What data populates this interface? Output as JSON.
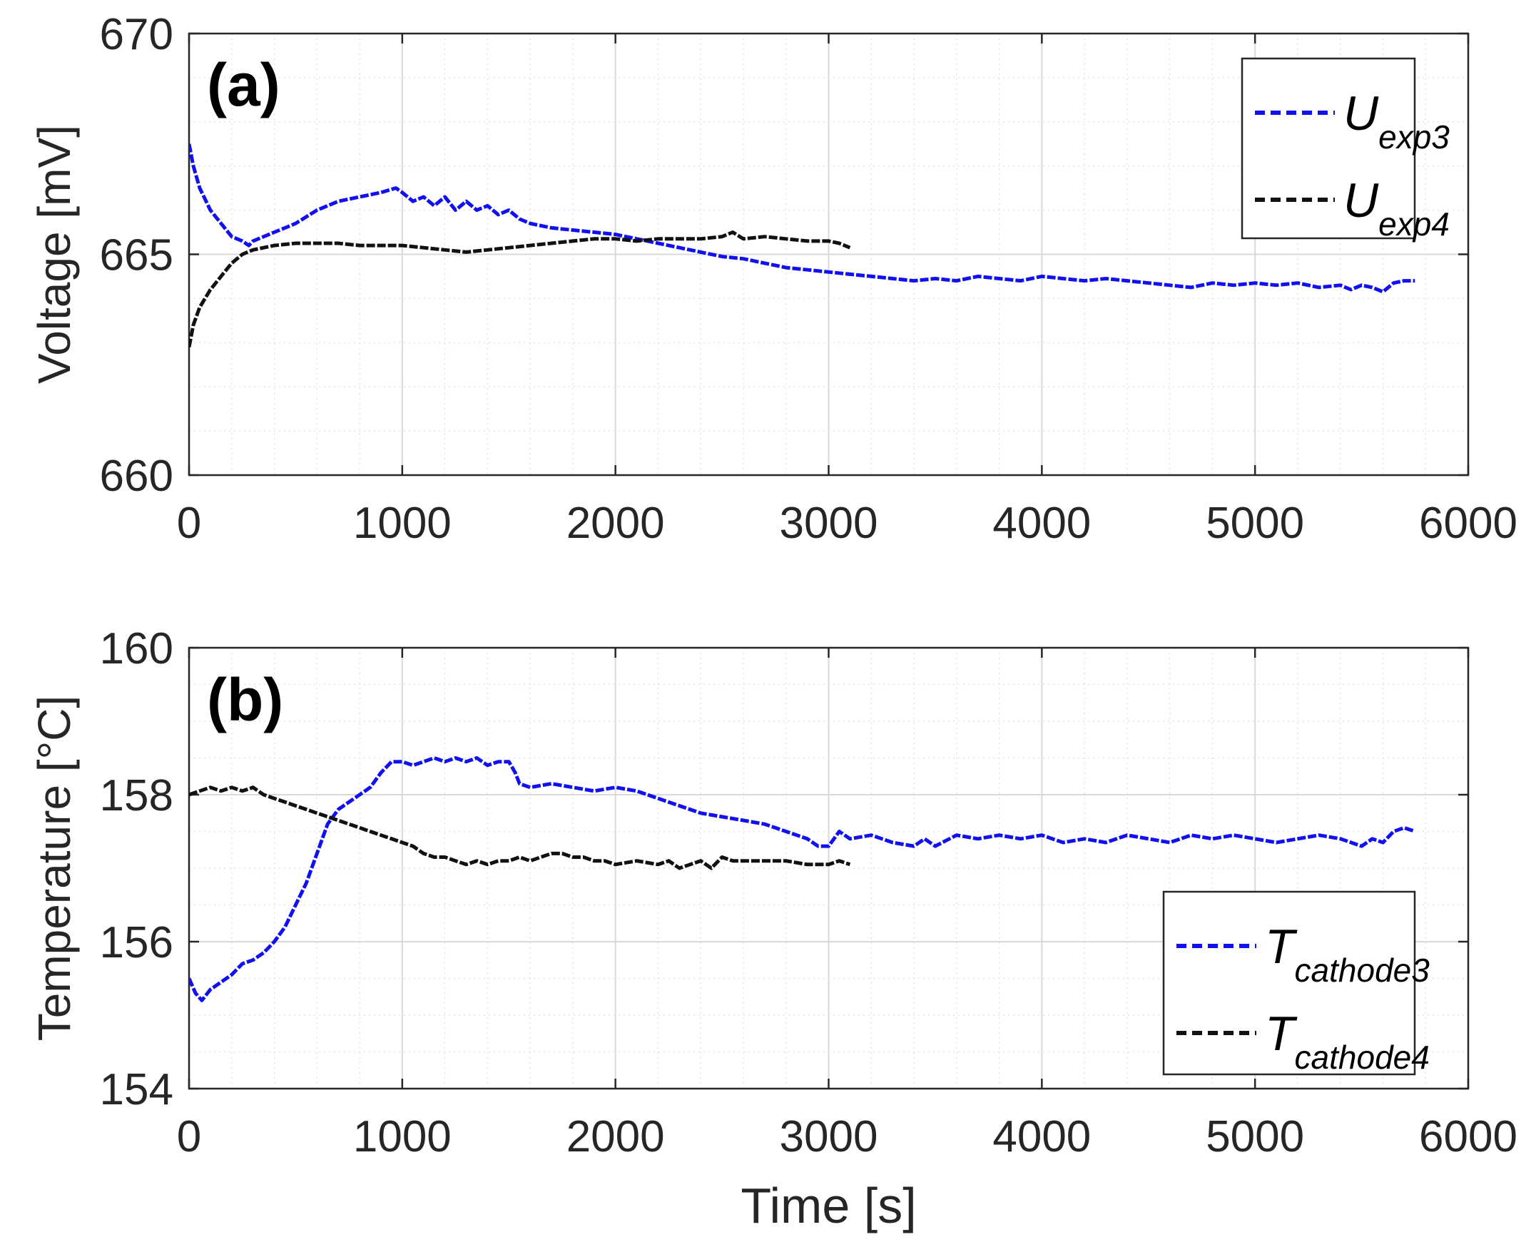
{
  "chart_data": [
    {
      "panel_label": "(a)",
      "type": "line",
      "xlim": [
        0,
        6000
      ],
      "ylim": [
        660,
        670
      ],
      "ylabel": "Voltage [mV]",
      "xlabel": "",
      "x_ticks": [
        "0",
        "1000",
        "2000",
        "3000",
        "4000",
        "5000",
        "6000"
      ],
      "y_ticks": [
        "660",
        "665",
        "670"
      ],
      "grid": "major and minor, dotted",
      "legend_position": "top-right",
      "series": [
        {
          "name_main": "U",
          "name_sub": "exp3",
          "color": "#1010f0",
          "style": "dashed",
          "x": [
            0,
            20,
            50,
            100,
            150,
            200,
            250,
            280,
            300,
            350,
            400,
            450,
            500,
            600,
            700,
            800,
            900,
            970,
            1000,
            1050,
            1100,
            1150,
            1200,
            1250,
            1300,
            1350,
            1400,
            1450,
            1500,
            1550,
            1600,
            1700,
            1800,
            1900,
            2000,
            2100,
            2200,
            2300,
            2400,
            2500,
            2600,
            2700,
            2800,
            2900,
            3000,
            3100,
            3200,
            3300,
            3400,
            3500,
            3600,
            3700,
            3800,
            3900,
            4000,
            4100,
            4200,
            4300,
            4400,
            4500,
            4600,
            4700,
            4800,
            4900,
            5000,
            5100,
            5200,
            5300,
            5400,
            5450,
            5500,
            5550,
            5600,
            5650,
            5700,
            5750
          ],
          "y": [
            667.5,
            667.0,
            666.5,
            666.0,
            665.7,
            665.4,
            665.3,
            665.2,
            665.3,
            665.4,
            665.5,
            665.6,
            665.7,
            666.0,
            666.2,
            666.3,
            666.4,
            666.5,
            666.4,
            666.2,
            666.3,
            666.1,
            666.3,
            666.0,
            666.2,
            666.0,
            666.1,
            665.9,
            666.0,
            665.8,
            665.7,
            665.6,
            665.55,
            665.5,
            665.45,
            665.35,
            665.25,
            665.15,
            665.05,
            664.95,
            664.9,
            664.8,
            664.7,
            664.65,
            664.6,
            664.55,
            664.5,
            664.45,
            664.4,
            664.45,
            664.4,
            664.5,
            664.45,
            664.4,
            664.5,
            664.45,
            664.4,
            664.45,
            664.4,
            664.35,
            664.3,
            664.25,
            664.35,
            664.3,
            664.35,
            664.3,
            664.35,
            664.25,
            664.3,
            664.2,
            664.3,
            664.25,
            664.15,
            664.35,
            664.4,
            664.4
          ]
        },
        {
          "name_main": "U",
          "name_sub": "exp4",
          "color": "#111111",
          "style": "dashed",
          "x": [
            0,
            20,
            50,
            100,
            150,
            200,
            250,
            300,
            350,
            400,
            500,
            600,
            700,
            800,
            900,
            1000,
            1100,
            1200,
            1300,
            1400,
            1500,
            1600,
            1700,
            1800,
            1900,
            2000,
            2100,
            2200,
            2300,
            2400,
            2500,
            2550,
            2600,
            2700,
            2800,
            2900,
            3000,
            3050,
            3100
          ],
          "y": [
            662.9,
            663.4,
            663.8,
            664.2,
            664.5,
            664.8,
            665.0,
            665.1,
            665.15,
            665.2,
            665.25,
            665.25,
            665.25,
            665.2,
            665.2,
            665.2,
            665.15,
            665.1,
            665.05,
            665.1,
            665.15,
            665.2,
            665.25,
            665.3,
            665.35,
            665.35,
            665.3,
            665.35,
            665.35,
            665.35,
            665.4,
            665.5,
            665.35,
            665.4,
            665.35,
            665.3,
            665.3,
            665.25,
            665.15
          ]
        }
      ]
    },
    {
      "panel_label": "(b)",
      "type": "line",
      "xlim": [
        0,
        6000
      ],
      "ylim": [
        154,
        160
      ],
      "ylabel": "Temperature [°C]",
      "xlabel": "Time [s]",
      "x_ticks": [
        "0",
        "1000",
        "2000",
        "3000",
        "4000",
        "5000",
        "6000"
      ],
      "y_ticks": [
        "154",
        "156",
        "158",
        "160"
      ],
      "grid": "major and minor, dotted",
      "legend_position": "bottom-right",
      "series": [
        {
          "name_main": "T",
          "name_sub": "cathode3",
          "color": "#1010f0",
          "style": "dashed",
          "x": [
            0,
            30,
            60,
            100,
            150,
            200,
            250,
            300,
            350,
            400,
            450,
            500,
            550,
            600,
            650,
            700,
            750,
            800,
            850,
            900,
            950,
            1000,
            1050,
            1100,
            1150,
            1200,
            1250,
            1300,
            1350,
            1400,
            1450,
            1500,
            1530,
            1550,
            1600,
            1700,
            1800,
            1900,
            2000,
            2100,
            2200,
            2300,
            2400,
            2500,
            2600,
            2700,
            2800,
            2900,
            2950,
            3000,
            3050,
            3100,
            3200,
            3300,
            3400,
            3450,
            3500,
            3600,
            3700,
            3800,
            3900,
            4000,
            4100,
            4200,
            4300,
            4400,
            4500,
            4600,
            4700,
            4800,
            4900,
            5000,
            5100,
            5200,
            5300,
            5400,
            5500,
            5550,
            5600,
            5650,
            5700,
            5750
          ],
          "y": [
            155.5,
            155.3,
            155.2,
            155.35,
            155.45,
            155.55,
            155.7,
            155.75,
            155.85,
            156.0,
            156.2,
            156.5,
            156.8,
            157.2,
            157.6,
            157.8,
            157.9,
            158.0,
            158.1,
            158.3,
            158.45,
            158.45,
            158.4,
            158.45,
            158.5,
            158.45,
            158.5,
            158.45,
            158.5,
            158.4,
            158.45,
            158.45,
            158.3,
            158.15,
            158.1,
            158.15,
            158.1,
            158.05,
            158.1,
            158.05,
            157.95,
            157.85,
            157.75,
            157.7,
            157.65,
            157.6,
            157.5,
            157.4,
            157.3,
            157.3,
            157.5,
            157.4,
            157.45,
            157.35,
            157.3,
            157.4,
            157.3,
            157.45,
            157.4,
            157.45,
            157.4,
            157.45,
            157.35,
            157.4,
            157.35,
            157.45,
            157.4,
            157.35,
            157.45,
            157.4,
            157.45,
            157.4,
            157.35,
            157.4,
            157.45,
            157.4,
            157.3,
            157.4,
            157.35,
            157.5,
            157.55,
            157.5
          ]
        },
        {
          "name_main": "T",
          "name_sub": "cathode4",
          "color": "#111111",
          "style": "dashed",
          "x": [
            0,
            50,
            100,
            150,
            200,
            250,
            300,
            350,
            400,
            450,
            500,
            550,
            600,
            650,
            700,
            750,
            800,
            850,
            900,
            950,
            1000,
            1050,
            1100,
            1150,
            1200,
            1250,
            1300,
            1350,
            1400,
            1450,
            1500,
            1550,
            1600,
            1650,
            1700,
            1750,
            1800,
            1850,
            1900,
            1950,
            2000,
            2100,
            2200,
            2250,
            2300,
            2350,
            2400,
            2450,
            2500,
            2550,
            2600,
            2700,
            2800,
            2900,
            3000,
            3050,
            3100
          ],
          "y": [
            158.0,
            158.05,
            158.1,
            158.05,
            158.1,
            158.05,
            158.1,
            158.0,
            157.95,
            157.9,
            157.85,
            157.8,
            157.75,
            157.7,
            157.65,
            157.6,
            157.55,
            157.5,
            157.45,
            157.4,
            157.35,
            157.3,
            157.2,
            157.15,
            157.15,
            157.1,
            157.05,
            157.1,
            157.05,
            157.1,
            157.1,
            157.15,
            157.1,
            157.15,
            157.2,
            157.2,
            157.15,
            157.15,
            157.1,
            157.1,
            157.05,
            157.1,
            157.05,
            157.1,
            157.0,
            157.05,
            157.1,
            157.0,
            157.15,
            157.1,
            157.1,
            157.1,
            157.1,
            157.05,
            157.05,
            157.1,
            157.05
          ]
        }
      ]
    }
  ]
}
